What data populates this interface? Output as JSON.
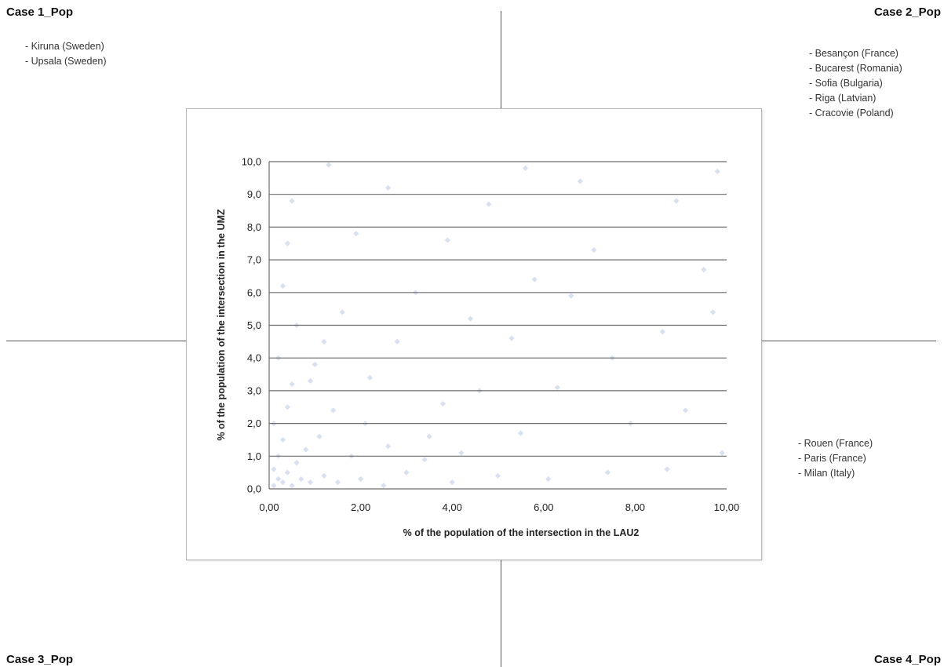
{
  "quadrants": [
    {
      "title": "Case 1_Pop",
      "cities": [
        "- Kiruna (Sweden)",
        "- Upsala (Sweden)"
      ]
    },
    {
      "title": "Case 2_Pop",
      "cities": [
        "- Besançon (France)",
        "- Bucarest (Romania)",
        "- Sofia (Bulgaria)",
        "- Riga (Latvian)",
        "- Cracovie (Poland)"
      ]
    },
    {
      "title": "Case 3_Pop",
      "cities": []
    },
    {
      "title": "Case 4_Pop",
      "cities": [
        "- Rouen (France)",
        "- Paris (France)",
        "- Milan (Italy)"
      ]
    }
  ],
  "chart_data": {
    "type": "scatter",
    "title": "",
    "xlabel": "% of the population of the intersection in the  LAU2",
    "ylabel": "% of the population of the intersection in the  UMZ",
    "xlim": [
      0,
      10
    ],
    "ylim": [
      0,
      10
    ],
    "x_ticks": [
      "0,00",
      "2,00",
      "4,00",
      "6,00",
      "8,00",
      "10,00"
    ],
    "y_ticks": [
      "0,0",
      "1,0",
      "2,0",
      "3,0",
      "4,0",
      "5,0",
      "6,0",
      "7,0",
      "8,0",
      "9,0",
      "10,0"
    ],
    "grid": "horizontal",
    "legend": "none",
    "marker": "diamond",
    "point_color": "#4a78c2",
    "point_opacity": 0.22,
    "series": [
      {
        "distribution": "dense cluster near the origin, spreading thinly across the full 0–10 range",
        "points": [
          [
            0.1,
            0.1
          ],
          [
            0.2,
            0.3
          ],
          [
            0.3,
            0.2
          ],
          [
            0.5,
            0.1
          ],
          [
            0.1,
            0.6
          ],
          [
            0.4,
            0.5
          ],
          [
            0.7,
            0.3
          ],
          [
            0.2,
            1.0
          ],
          [
            0.9,
            0.2
          ],
          [
            0.6,
            0.8
          ],
          [
            1.2,
            0.4
          ],
          [
            0.3,
            1.5
          ],
          [
            1.5,
            0.2
          ],
          [
            0.8,
            1.2
          ],
          [
            0.1,
            2.0
          ],
          [
            2.0,
            0.3
          ],
          [
            1.1,
            1.6
          ],
          [
            0.4,
            2.5
          ],
          [
            2.5,
            0.1
          ],
          [
            1.8,
            1.0
          ],
          [
            0.5,
            3.2
          ],
          [
            3.0,
            0.5
          ],
          [
            1.4,
            2.4
          ],
          [
            2.6,
            1.3
          ],
          [
            0.2,
            4.0
          ],
          [
            4.0,
            0.2
          ],
          [
            1.0,
            3.8
          ],
          [
            3.5,
            1.6
          ],
          [
            0.6,
            5.0
          ],
          [
            5.0,
            0.4
          ],
          [
            2.2,
            3.4
          ],
          [
            3.8,
            2.6
          ],
          [
            0.3,
            6.2
          ],
          [
            6.1,
            0.3
          ],
          [
            1.6,
            5.4
          ],
          [
            5.5,
            1.7
          ],
          [
            2.8,
            4.5
          ],
          [
            4.6,
            3.0
          ],
          [
            0.4,
            7.5
          ],
          [
            7.4,
            0.5
          ],
          [
            3.2,
            6.0
          ],
          [
            6.3,
            3.1
          ],
          [
            1.9,
            7.8
          ],
          [
            7.9,
            2.0
          ],
          [
            4.4,
            5.2
          ],
          [
            5.3,
            4.6
          ],
          [
            0.5,
            8.8
          ],
          [
            8.7,
            0.6
          ],
          [
            2.6,
            9.2
          ],
          [
            9.1,
            2.4
          ],
          [
            3.9,
            7.6
          ],
          [
            7.5,
            4.0
          ],
          [
            5.8,
            6.4
          ],
          [
            6.6,
            5.9
          ],
          [
            4.8,
            8.7
          ],
          [
            8.6,
            4.8
          ],
          [
            7.1,
            7.3
          ],
          [
            6.8,
            9.4
          ],
          [
            9.5,
            6.7
          ],
          [
            8.9,
            8.8
          ],
          [
            9.8,
            9.7
          ],
          [
            1.3,
            9.9
          ],
          [
            9.9,
            1.1
          ],
          [
            5.6,
            9.8
          ],
          [
            9.7,
            5.4
          ],
          [
            3.4,
            0.9
          ],
          [
            0.9,
            3.3
          ],
          [
            2.1,
            2.0
          ],
          [
            4.2,
            1.1
          ],
          [
            1.2,
            4.5
          ]
        ]
      }
    ]
  }
}
